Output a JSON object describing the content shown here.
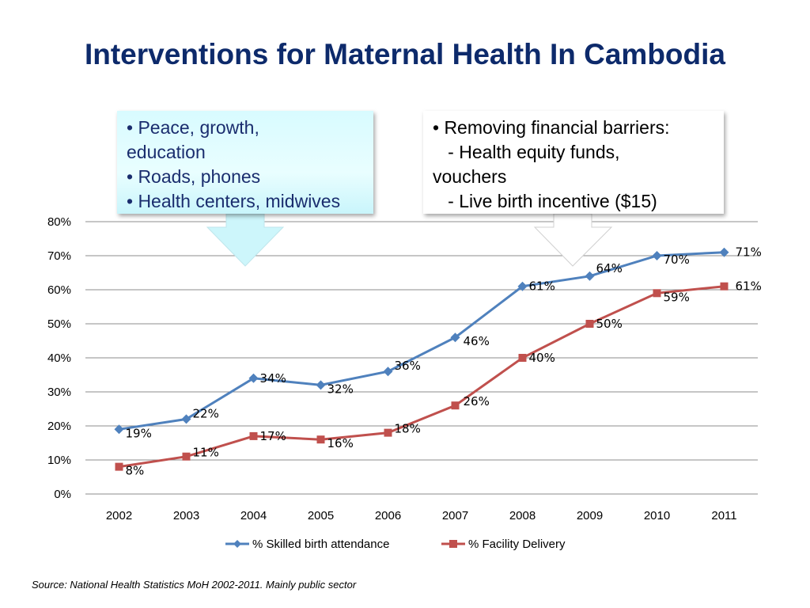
{
  "title": "Interventions for Maternal Health In Cambodia",
  "callout_left": {
    "lines": [
      "• Peace, growth,",
      "education",
      "• Roads, phones",
      "• Health centers, midwives"
    ]
  },
  "callout_right": {
    "lines": [
      "• Removing financial barriers:",
      "   - Health equity funds,",
      "vouchers",
      "   - Live birth incentive ($15)"
    ]
  },
  "source": "Source: National Health Statistics MoH   2002-2011.  Mainly public sector",
  "chart_data": {
    "type": "line",
    "categories": [
      "2002",
      "2003",
      "2004",
      "2005",
      "2006",
      "2007",
      "2008",
      "2009",
      "2010",
      "2011"
    ],
    "ylim": [
      0,
      80
    ],
    "yticks": [
      "0%",
      "10%",
      "20%",
      "30%",
      "40%",
      "50%",
      "60%",
      "70%",
      "80%"
    ],
    "grid": true,
    "legend": "bottom",
    "series": [
      {
        "name": "% Skilled birth attendance",
        "color": "#4f81bd",
        "marker": "diamond",
        "values": [
          19,
          22,
          34,
          32,
          36,
          46,
          61,
          64,
          70,
          71
        ],
        "labels": [
          "19%",
          "22%",
          "34%",
          "32%",
          "36%",
          "46%",
          "61%",
          "64%",
          "70%",
          "71%"
        ]
      },
      {
        "name": "% Facility Delivery",
        "color": "#c0504d",
        "marker": "square",
        "values": [
          8,
          11,
          17,
          16,
          18,
          26,
          40,
          50,
          59,
          61
        ],
        "labels": [
          "8%",
          "11%",
          "17%",
          "16%",
          "18%",
          "26%",
          "40%",
          "50%",
          "59%",
          "61%"
        ]
      }
    ]
  }
}
